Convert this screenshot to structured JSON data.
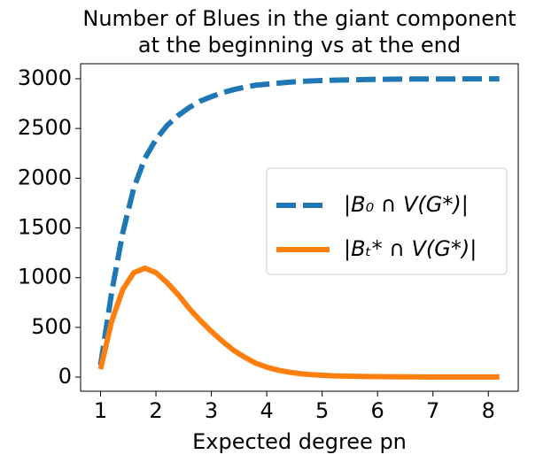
{
  "chart_data": {
    "type": "line",
    "title": [
      "Number of Blues in the giant component",
      "at the beginning vs at the end"
    ],
    "xlabel": "Expected degree pn",
    "x": [
      1.0,
      1.2,
      1.4,
      1.6,
      1.8,
      2.0,
      2.2,
      2.4,
      2.6,
      2.8,
      3.0,
      3.2,
      3.4,
      3.6,
      3.8,
      4.0,
      4.2,
      4.4,
      4.6,
      4.8,
      5.0,
      5.2,
      5.4,
      5.6,
      5.8,
      6.0,
      6.2,
      6.4,
      6.6,
      6.8,
      7.0,
      7.2,
      7.4,
      7.6,
      7.8,
      8.0,
      8.2
    ],
    "series": [
      {
        "name": "|B₀ ∩ V(G*)|",
        "color": "#1f77b4",
        "dash": true,
        "values": [
          120,
          850,
          1450,
          1900,
          2200,
          2390,
          2530,
          2630,
          2710,
          2775,
          2820,
          2860,
          2890,
          2915,
          2935,
          2945,
          2955,
          2965,
          2972,
          2978,
          2982,
          2985,
          2988,
          2990,
          2992,
          2994,
          2995,
          2996,
          2997,
          2997,
          2998,
          2998,
          2998,
          2999,
          2999,
          2999,
          2999
        ]
      },
      {
        "name": "|Bₜ* ∩ V(G*)|",
        "color": "#ff7f0e",
        "dash": false,
        "values": [
          80,
          560,
          880,
          1050,
          1095,
          1050,
          950,
          830,
          690,
          570,
          460,
          360,
          270,
          200,
          140,
          100,
          70,
          50,
          35,
          25,
          18,
          13,
          10,
          8,
          6,
          5,
          4,
          3,
          3,
          2,
          2,
          2,
          1,
          1,
          1,
          1,
          1
        ]
      }
    ],
    "xlim": [
      0.64,
      8.54
    ],
    "ylim": [
      -142,
      3151
    ],
    "xticks": [
      1,
      2,
      3,
      4,
      5,
      6,
      7,
      8
    ],
    "yticks": [
      0,
      500,
      1000,
      1500,
      2000,
      2500,
      3000
    ],
    "legend": "right"
  }
}
